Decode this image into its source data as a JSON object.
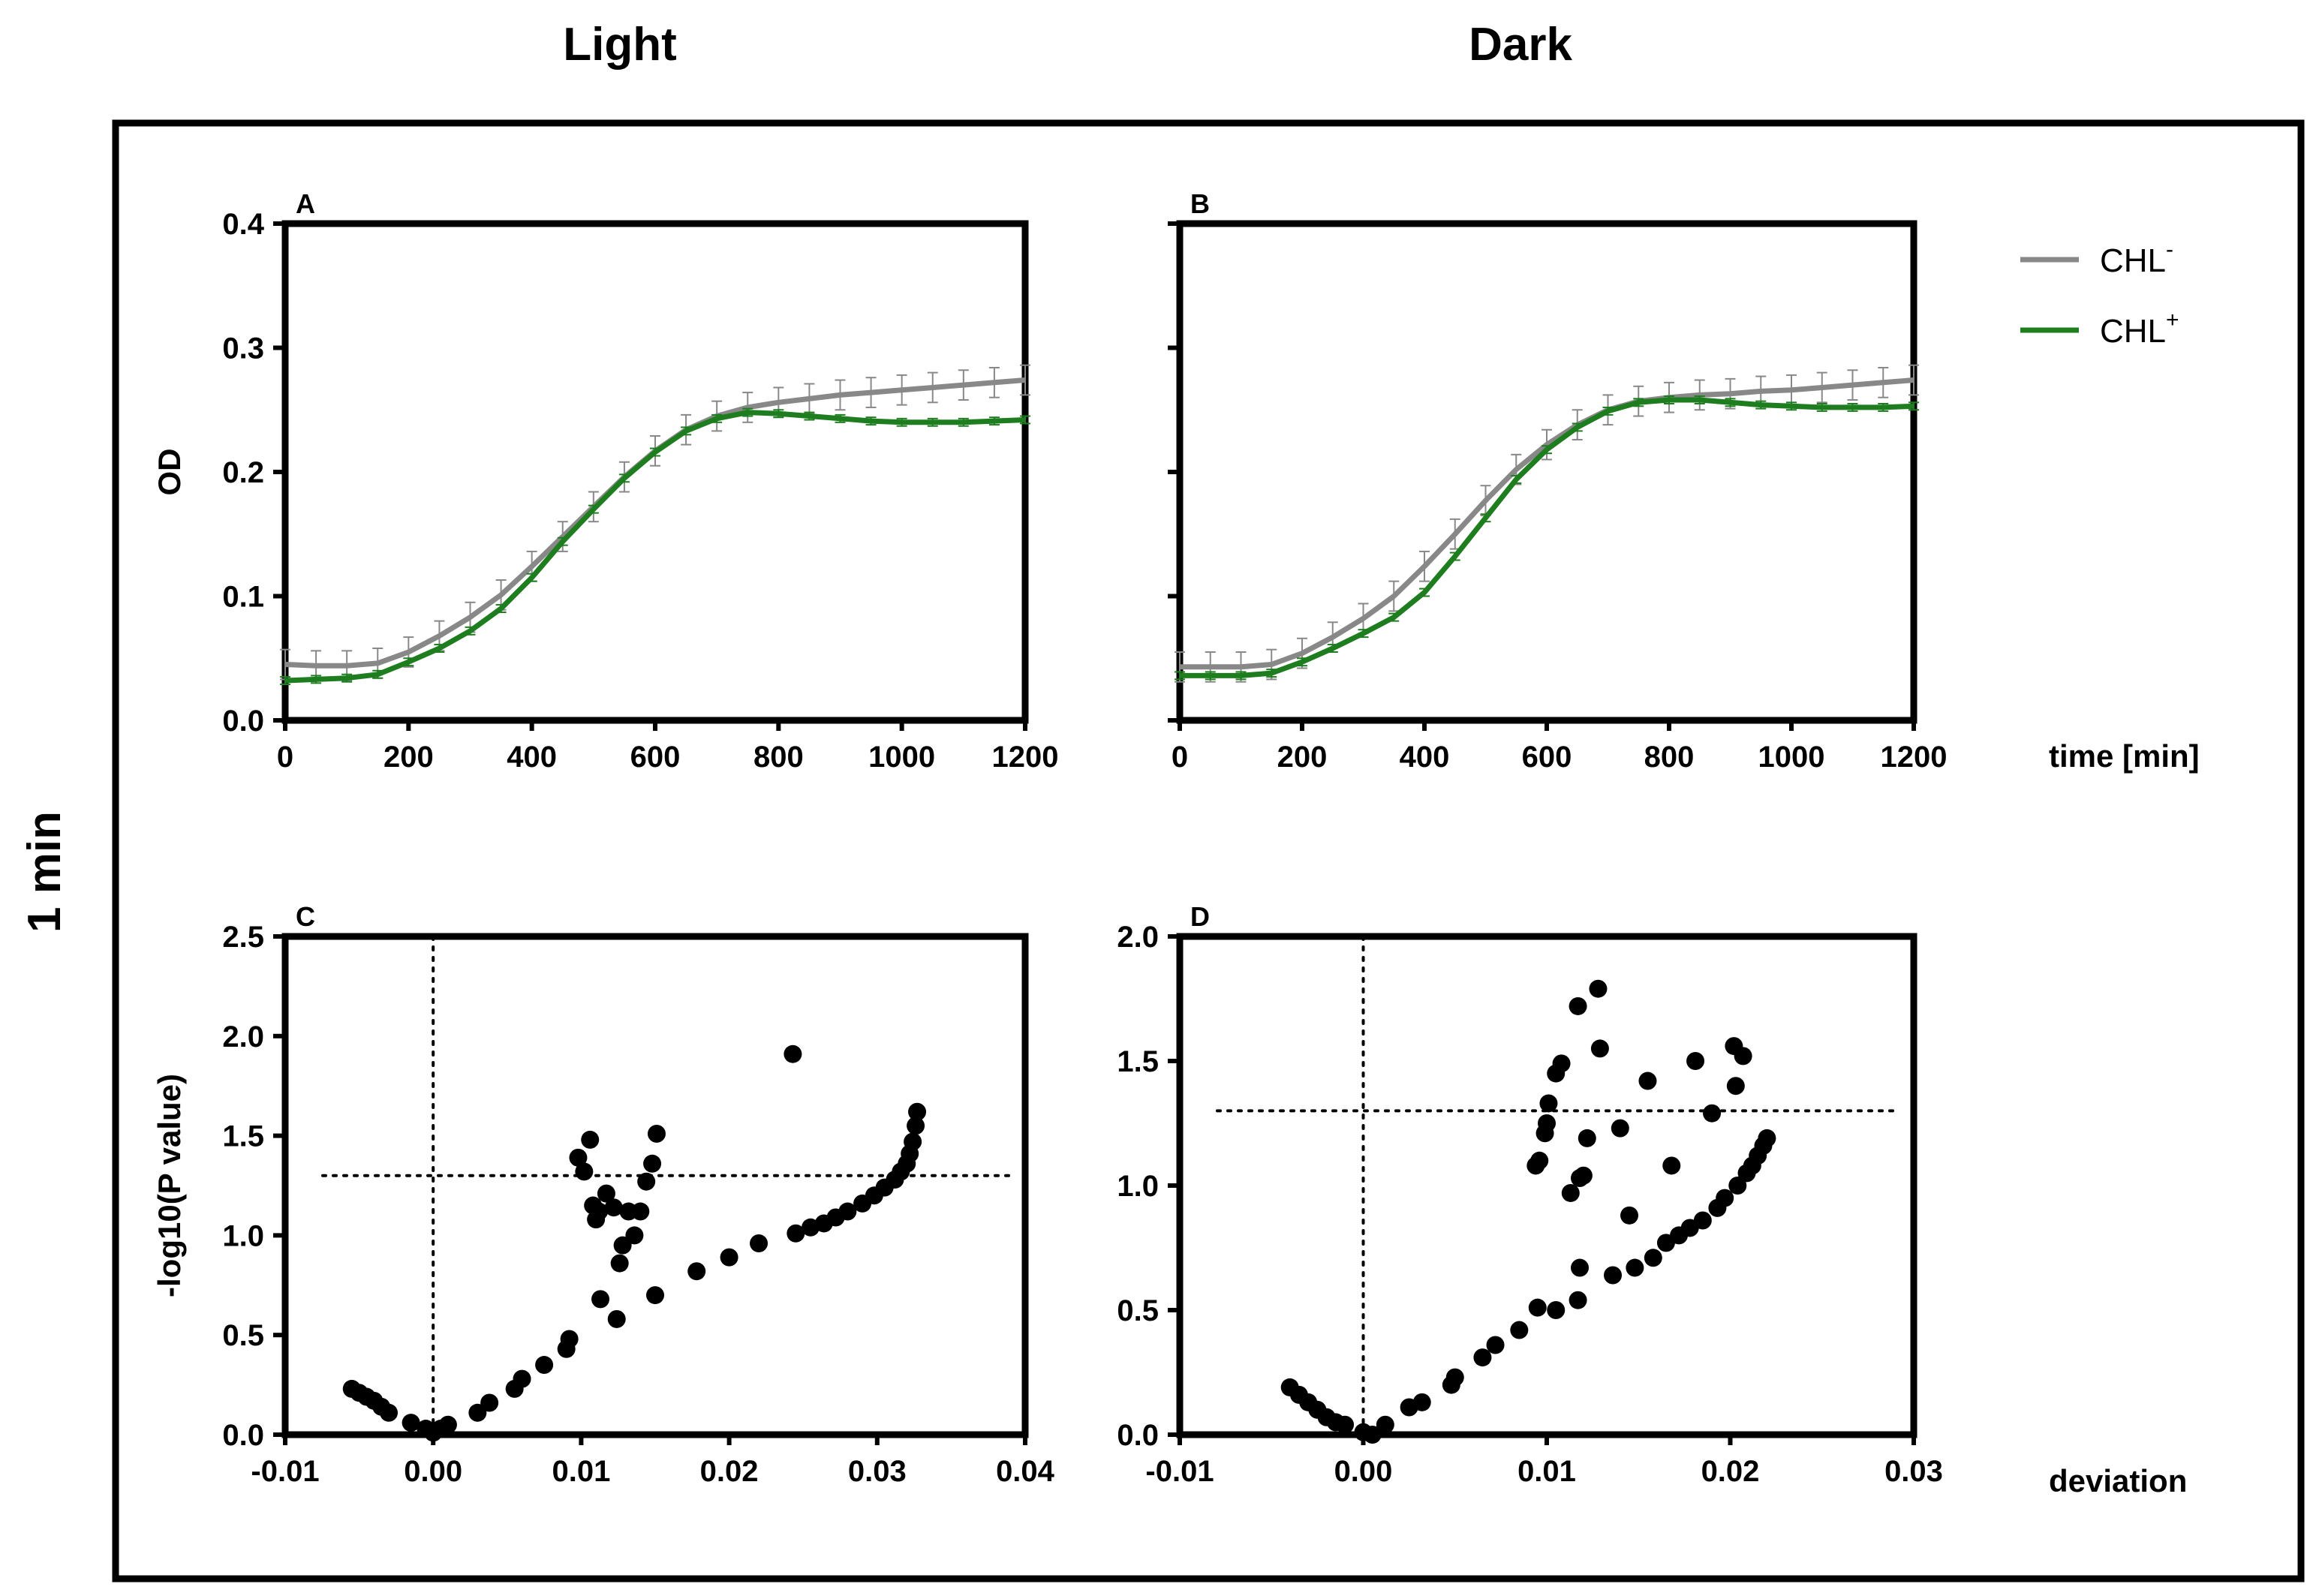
{
  "figure": {
    "column_titles": [
      "Light",
      "Dark"
    ],
    "row_title": "1 min",
    "x_axis_label_top": "time [min]",
    "x_axis_label_bottom": "deviation"
  },
  "legend": [
    {
      "label": "CHL",
      "superscript": "-",
      "color": "#888888"
    },
    {
      "label": "CHL",
      "superscript": "+",
      "color": "#1e7d1e"
    }
  ],
  "chart_data": [
    {
      "id": "A",
      "panel_label": "A",
      "type": "line",
      "column": "Light",
      "xlabel": "time [min]",
      "ylabel": "OD",
      "xlim": [
        0,
        1200
      ],
      "ylim": [
        0,
        0.4
      ],
      "xticks": [
        0,
        200,
        400,
        600,
        800,
        1000,
        1200
      ],
      "xtick_labels": [
        "0",
        "200",
        "400",
        "600",
        "800",
        "1000",
        "1200"
      ],
      "yticks": [
        0.0,
        0.1,
        0.2,
        0.3,
        0.4
      ],
      "ytick_labels": [
        "0.0",
        "0.1",
        "0.2",
        "0.3",
        "0.4"
      ],
      "x": [
        0,
        50,
        100,
        150,
        200,
        250,
        300,
        350,
        400,
        450,
        500,
        550,
        600,
        650,
        700,
        750,
        800,
        850,
        900,
        950,
        1000,
        1050,
        1100,
        1150,
        1200
      ],
      "series": [
        {
          "name": "CHL-",
          "color": "#888888",
          "error": 0.012,
          "values": [
            0.045,
            0.044,
            0.044,
            0.046,
            0.055,
            0.068,
            0.083,
            0.101,
            0.124,
            0.148,
            0.172,
            0.196,
            0.217,
            0.234,
            0.245,
            0.252,
            0.256,
            0.259,
            0.262,
            0.264,
            0.266,
            0.268,
            0.27,
            0.272,
            0.274
          ]
        },
        {
          "name": "CHL+",
          "color": "#1e7d1e",
          "error": 0.003,
          "values": [
            0.032,
            0.033,
            0.034,
            0.037,
            0.047,
            0.058,
            0.072,
            0.09,
            0.115,
            0.144,
            0.17,
            0.195,
            0.216,
            0.233,
            0.243,
            0.248,
            0.247,
            0.245,
            0.243,
            0.241,
            0.24,
            0.24,
            0.24,
            0.241,
            0.242
          ]
        }
      ]
    },
    {
      "id": "B",
      "panel_label": "B",
      "type": "line",
      "column": "Dark",
      "xlabel": "time [min]",
      "ylabel": "",
      "xlim": [
        0,
        1200
      ],
      "ylim": [
        0,
        0.4
      ],
      "xticks": [
        0,
        200,
        400,
        600,
        800,
        1000,
        1200
      ],
      "xtick_labels": [
        "0",
        "200",
        "400",
        "600",
        "800",
        "1000",
        "1200"
      ],
      "yticks": [
        0.0,
        0.1,
        0.2,
        0.3,
        0.4
      ],
      "ytick_labels": [],
      "x": [
        0,
        50,
        100,
        150,
        200,
        250,
        300,
        350,
        400,
        450,
        500,
        550,
        600,
        650,
        700,
        750,
        800,
        850,
        900,
        950,
        1000,
        1050,
        1100,
        1150,
        1200
      ],
      "series": [
        {
          "name": "CHL-",
          "color": "#888888",
          "error": 0.012,
          "values": [
            0.043,
            0.043,
            0.043,
            0.045,
            0.054,
            0.067,
            0.082,
            0.1,
            0.124,
            0.15,
            0.177,
            0.202,
            0.222,
            0.238,
            0.25,
            0.257,
            0.26,
            0.262,
            0.263,
            0.265,
            0.266,
            0.268,
            0.27,
            0.272,
            0.274
          ]
        },
        {
          "name": "CHL+",
          "color": "#1e7d1e",
          "error": 0.003,
          "values": [
            0.036,
            0.036,
            0.036,
            0.038,
            0.047,
            0.058,
            0.07,
            0.083,
            0.103,
            0.132,
            0.163,
            0.194,
            0.218,
            0.236,
            0.249,
            0.256,
            0.258,
            0.258,
            0.256,
            0.254,
            0.253,
            0.252,
            0.252,
            0.252,
            0.253
          ]
        }
      ]
    },
    {
      "id": "C",
      "panel_label": "C",
      "type": "scatter",
      "column": "Light",
      "xlabel": "deviation",
      "ylabel": "-log10(P value)",
      "xlim": [
        -0.01,
        0.04
      ],
      "ylim": [
        0,
        2.5
      ],
      "xticks": [
        -0.01,
        0.0,
        0.01,
        0.02,
        0.03,
        0.04
      ],
      "xtick_labels": [
        "-0.01",
        "0.00",
        "0.01",
        "0.02",
        "0.03",
        "0.04"
      ],
      "yticks": [
        0.0,
        0.5,
        1.0,
        1.5,
        2.0,
        2.5
      ],
      "ytick_labels": [
        "0.0",
        "0.5",
        "1.0",
        "1.5",
        "2.0",
        "2.5"
      ],
      "hline": 1.3,
      "vline": 0.0,
      "points": [
        [
          -0.0055,
          0.23
        ],
        [
          -0.005,
          0.21
        ],
        [
          -0.0045,
          0.19
        ],
        [
          -0.004,
          0.17
        ],
        [
          -0.0035,
          0.14
        ],
        [
          -0.003,
          0.11
        ],
        [
          -0.0015,
          0.06
        ],
        [
          -0.0005,
          0.03
        ],
        [
          0.0,
          0.01
        ],
        [
          0.0005,
          0.03
        ],
        [
          0.001,
          0.05
        ],
        [
          0.003,
          0.11
        ],
        [
          0.0038,
          0.16
        ],
        [
          0.0055,
          0.23
        ],
        [
          0.006,
          0.28
        ],
        [
          0.0075,
          0.35
        ],
        [
          0.009,
          0.43
        ],
        [
          0.0092,
          0.48
        ],
        [
          0.0098,
          1.39
        ],
        [
          0.0102,
          1.32
        ],
        [
          0.0106,
          1.48
        ],
        [
          0.0108,
          1.15
        ],
        [
          0.011,
          1.08
        ],
        [
          0.0112,
          1.12
        ],
        [
          0.0113,
          0.68
        ],
        [
          0.0117,
          1.21
        ],
        [
          0.0122,
          1.14
        ],
        [
          0.0124,
          0.58
        ],
        [
          0.0126,
          0.86
        ],
        [
          0.0128,
          0.95
        ],
        [
          0.0132,
          1.12
        ],
        [
          0.0136,
          1.0
        ],
        [
          0.014,
          1.12
        ],
        [
          0.0144,
          1.27
        ],
        [
          0.0148,
          1.36
        ],
        [
          0.0151,
          1.51
        ],
        [
          0.015,
          0.7
        ],
        [
          0.0178,
          0.82
        ],
        [
          0.02,
          0.89
        ],
        [
          0.022,
          0.96
        ],
        [
          0.0245,
          1.01
        ],
        [
          0.0255,
          1.04
        ],
        [
          0.0264,
          1.06
        ],
        [
          0.0272,
          1.09
        ],
        [
          0.028,
          1.12
        ],
        [
          0.029,
          1.16
        ],
        [
          0.0298,
          1.2
        ],
        [
          0.0305,
          1.24
        ],
        [
          0.0312,
          1.28
        ],
        [
          0.0316,
          1.32
        ],
        [
          0.032,
          1.36
        ],
        [
          0.0322,
          1.41
        ],
        [
          0.0324,
          1.47
        ],
        [
          0.0326,
          1.55
        ],
        [
          0.0327,
          1.62
        ],
        [
          0.0243,
          1.91
        ]
      ]
    },
    {
      "id": "D",
      "panel_label": "D",
      "type": "scatter",
      "column": "Dark",
      "xlabel": "deviation",
      "ylabel": "",
      "xlim": [
        -0.01,
        0.03
      ],
      "ylim": [
        0,
        2.0
      ],
      "xticks": [
        -0.01,
        0.0,
        0.01,
        0.02,
        0.03
      ],
      "xtick_labels": [
        "-0.01",
        "0.00",
        "0.01",
        "0.02",
        "0.03"
      ],
      "yticks": [
        0.0,
        0.5,
        1.0,
        1.5,
        2.0
      ],
      "ytick_labels": [
        "0.0",
        "0.5",
        "1.0",
        "1.5",
        "2.0"
      ],
      "hline": 1.3,
      "vline": 0.0,
      "points": [
        [
          -0.004,
          0.19
        ],
        [
          -0.0035,
          0.16
        ],
        [
          -0.003,
          0.13
        ],
        [
          -0.0025,
          0.1
        ],
        [
          -0.002,
          0.07
        ],
        [
          -0.0015,
          0.05
        ],
        [
          -0.001,
          0.04
        ],
        [
          0.0,
          0.01
        ],
        [
          0.0005,
          0.0
        ],
        [
          0.0012,
          0.04
        ],
        [
          0.0025,
          0.11
        ],
        [
          0.0032,
          0.13
        ],
        [
          0.0048,
          0.2
        ],
        [
          0.005,
          0.23
        ],
        [
          0.0065,
          0.31
        ],
        [
          0.0072,
          0.36
        ],
        [
          0.0085,
          0.42
        ],
        [
          0.0095,
          0.51
        ],
        [
          0.0105,
          0.5
        ],
        [
          0.0094,
          1.08
        ],
        [
          0.0096,
          1.1
        ],
        [
          0.0099,
          1.21
        ],
        [
          0.01,
          1.25
        ],
        [
          0.0101,
          1.33
        ],
        [
          0.0105,
          1.45
        ],
        [
          0.0108,
          1.49
        ],
        [
          0.0113,
          0.97
        ],
        [
          0.0117,
          1.72
        ],
        [
          0.0118,
          1.03
        ],
        [
          0.012,
          1.04
        ],
        [
          0.0122,
          1.19
        ],
        [
          0.0128,
          1.79
        ],
        [
          0.0129,
          1.55
        ],
        [
          0.0136,
          0.64
        ],
        [
          0.014,
          1.23
        ],
        [
          0.0145,
          0.88
        ],
        [
          0.0148,
          0.67
        ],
        [
          0.0155,
          1.42
        ],
        [
          0.0158,
          0.71
        ],
        [
          0.0168,
          1.08
        ],
        [
          0.0165,
          0.77
        ],
        [
          0.0172,
          0.8
        ],
        [
          0.0178,
          0.83
        ],
        [
          0.0181,
          1.5
        ],
        [
          0.0185,
          0.86
        ],
        [
          0.019,
          1.29
        ],
        [
          0.0193,
          0.91
        ],
        [
          0.0197,
          0.95
        ],
        [
          0.0202,
          1.56
        ],
        [
          0.0203,
          1.4
        ],
        [
          0.0204,
          1.0
        ],
        [
          0.0207,
          1.52
        ],
        [
          0.0209,
          1.05
        ],
        [
          0.0212,
          1.08
        ],
        [
          0.0215,
          1.12
        ],
        [
          0.0218,
          1.16
        ],
        [
          0.022,
          1.19
        ],
        [
          0.0117,
          0.54
        ],
        [
          0.0118,
          0.67
        ]
      ]
    }
  ]
}
